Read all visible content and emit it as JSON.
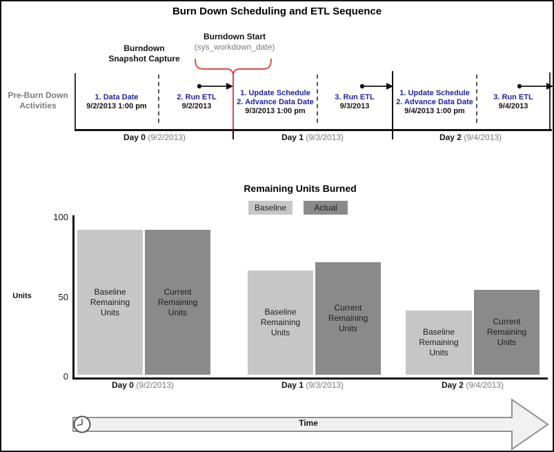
{
  "page_title": "Burn Down Scheduling and ETL Sequence",
  "timeline": {
    "side_label_line1": "Pre-Burn Down",
    "side_label_line2": "Activities",
    "snapshot_label_line1": "Burndown",
    "snapshot_label_line2": "Snapshot Capture",
    "burndown_start_label": "Burndown Start",
    "burndown_start_sublabel": "(sys_workdown_date)",
    "accent_red": "#e04545",
    "item_blue": "#2121a3",
    "gray_text": "#7a7a7a",
    "segments": [
      {
        "line1": "1. Data Date",
        "date": "9/2/2013 1:00 pm"
      },
      {
        "line1": "2. Run ETL",
        "date": "9/2/2013"
      },
      {
        "line1": "1. Update Schedule",
        "line2": "2. Advance Data Date",
        "date": "9/3/2013 1:00 pm"
      },
      {
        "line1": "3. Run ETL",
        "date": "9/3/2013"
      },
      {
        "line1": "1. Update Schedule",
        "line2": "2. Advance Data Date",
        "date": "9/4/2013 1:00 pm"
      },
      {
        "line1": "3. Run ETL",
        "date": "9/4/2013"
      }
    ],
    "days": [
      {
        "name": "Day 0",
        "date": "(9/2/2013)"
      },
      {
        "name": "Day 1",
        "date": "(9/3/2013)"
      },
      {
        "name": "Day 2",
        "date": "(9/4/2013)"
      }
    ]
  },
  "chart_data": {
    "type": "bar",
    "title": "Remaining Units Burned",
    "categories": [
      "Day 0 (9/2/2013)",
      "Day 1 (9/3/2013)",
      "Day 2 (9/4/2013)"
    ],
    "xtick_parts": [
      {
        "bold": "Day 0",
        "rest": "(9/2/2013)"
      },
      {
        "bold": "Day 1",
        "rest": "(9/3/2013)"
      },
      {
        "bold": "Day 2",
        "rest": "(9/4/2013)"
      }
    ],
    "series": [
      {
        "name": "Baseline",
        "bar_label": "Baseline\nRemaining\nUnits",
        "values": [
          90,
          65,
          40
        ],
        "color": "#c6c6c6"
      },
      {
        "name": "Actual",
        "bar_label": "Current\nRemaining\nUnits",
        "values": [
          90,
          70,
          53
        ],
        "color": "#8a8a8a"
      }
    ],
    "ylabel": "Units",
    "yticks": [
      "0",
      "50",
      "100"
    ],
    "ylim": [
      0,
      100
    ],
    "legend_position": "top-center",
    "grid": false
  },
  "footer": {
    "time_label": "Time"
  }
}
